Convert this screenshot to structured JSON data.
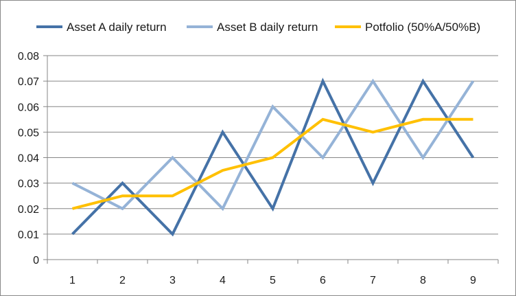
{
  "chart_data": {
    "type": "line",
    "categories": [
      "1",
      "2",
      "3",
      "4",
      "5",
      "6",
      "7",
      "8",
      "9"
    ],
    "series": [
      {
        "name": "Asset A daily return",
        "color": "#4572A7",
        "values": [
          0.01,
          0.03,
          0.01,
          0.05,
          0.02,
          0.07,
          0.03,
          0.07,
          0.04
        ]
      },
      {
        "name": "Asset B daily return",
        "color": "#95B3D7",
        "values": [
          0.03,
          0.02,
          0.04,
          0.02,
          0.06,
          0.04,
          0.07,
          0.04,
          0.07
        ]
      },
      {
        "name": "Potfolio (50%A/50%B)",
        "color": "#FFC000",
        "values": [
          0.02,
          0.025,
          0.025,
          0.035,
          0.04,
          0.055,
          0.05,
          0.055,
          0.055
        ]
      }
    ],
    "ylim": [
      0,
      0.08
    ],
    "yticks": [
      "0",
      "0.01",
      "0.02",
      "0.03",
      "0.04",
      "0.05",
      "0.06",
      "0.07",
      "0.08"
    ],
    "grid": true,
    "legend_position": "top",
    "title": "",
    "xlabel": "",
    "ylabel": ""
  }
}
